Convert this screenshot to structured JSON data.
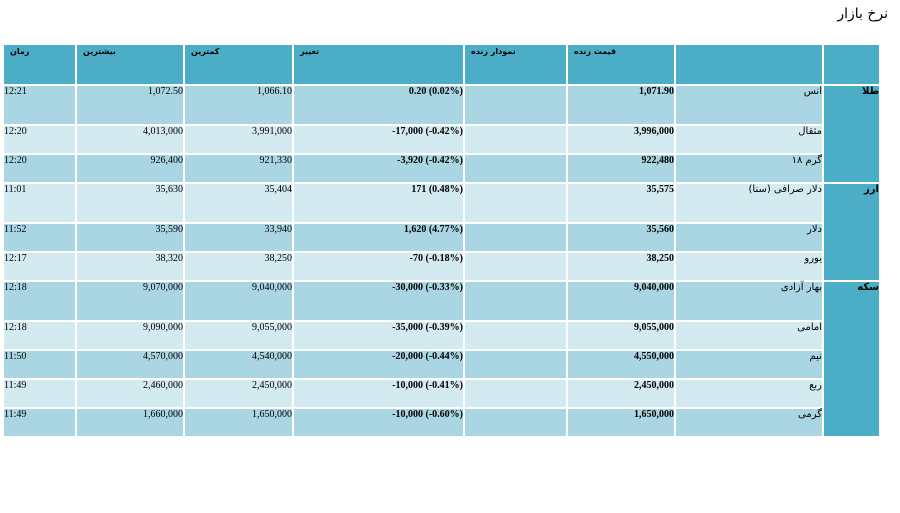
{
  "page": {
    "title": "نرخ بازار"
  },
  "table": {
    "headers": {
      "time": "زمان",
      "high": "بیشترین",
      "low": "کمترین",
      "change": "تغییر",
      "chart": "نمودار زنده",
      "price": "قیمت زنده",
      "name": "",
      "group": ""
    },
    "groups": [
      {
        "label": "طلا"
      },
      {
        "label": "ارز"
      },
      {
        "label": "سکه"
      }
    ],
    "rows": [
      {
        "name": "انس",
        "price": "1,071.90",
        "change": "0.20 (0.02%)",
        "low": "1,066.10",
        "high": "1,072.50",
        "time": "12:21"
      },
      {
        "name": "مثقال",
        "price": "3,996,000",
        "change": "-17,000 (-0.42%)",
        "low": "3,991,000",
        "high": "4,013,000",
        "time": "12:20"
      },
      {
        "name": "گرم ۱۸",
        "price": "922,480",
        "change": "-3,920 (-0.42%)",
        "low": "921,330",
        "high": "926,400",
        "time": "12:20"
      },
      {
        "name": "دلار صرافی (سنا)",
        "price": "35,575",
        "change": "171 (0.48%)",
        "low": "35,404",
        "high": "35,630",
        "time": "11:01"
      },
      {
        "name": "دلار",
        "price": "35,560",
        "change": "1,620 (4.77%)",
        "low": "33,940",
        "high": "35,590",
        "time": "11:52"
      },
      {
        "name": "یورو",
        "price": "38,250",
        "change": "-70 (-0.18%)",
        "low": "38,250",
        "high": "38,320",
        "time": "12:17"
      },
      {
        "name": "بهار آزادی",
        "price": "9,040,000",
        "change": "-30,000 (-0.33%)",
        "low": "9,040,000",
        "high": "9,070,000",
        "time": "12:18"
      },
      {
        "name": "امامی",
        "price": "9,055,000",
        "change": "-35,000 (-0.39%)",
        "low": "9,055,000",
        "high": "9,090,000",
        "time": "12:18"
      },
      {
        "name": "نیم",
        "price": "4,550,000",
        "change": "-20,000 (-0.44%)",
        "low": "4,540,000",
        "high": "4,570,000",
        "time": "11:50"
      },
      {
        "name": "ربع",
        "price": "2,450,000",
        "change": "-10,000 (-0.41%)",
        "low": "2,450,000",
        "high": "2,460,000",
        "time": "11:49"
      },
      {
        "name": "گرمی",
        "price": "1,650,000",
        "change": "-10,000 (-0.60%)",
        "low": "1,650,000",
        "high": "1,660,000",
        "time": "11:49"
      }
    ]
  }
}
